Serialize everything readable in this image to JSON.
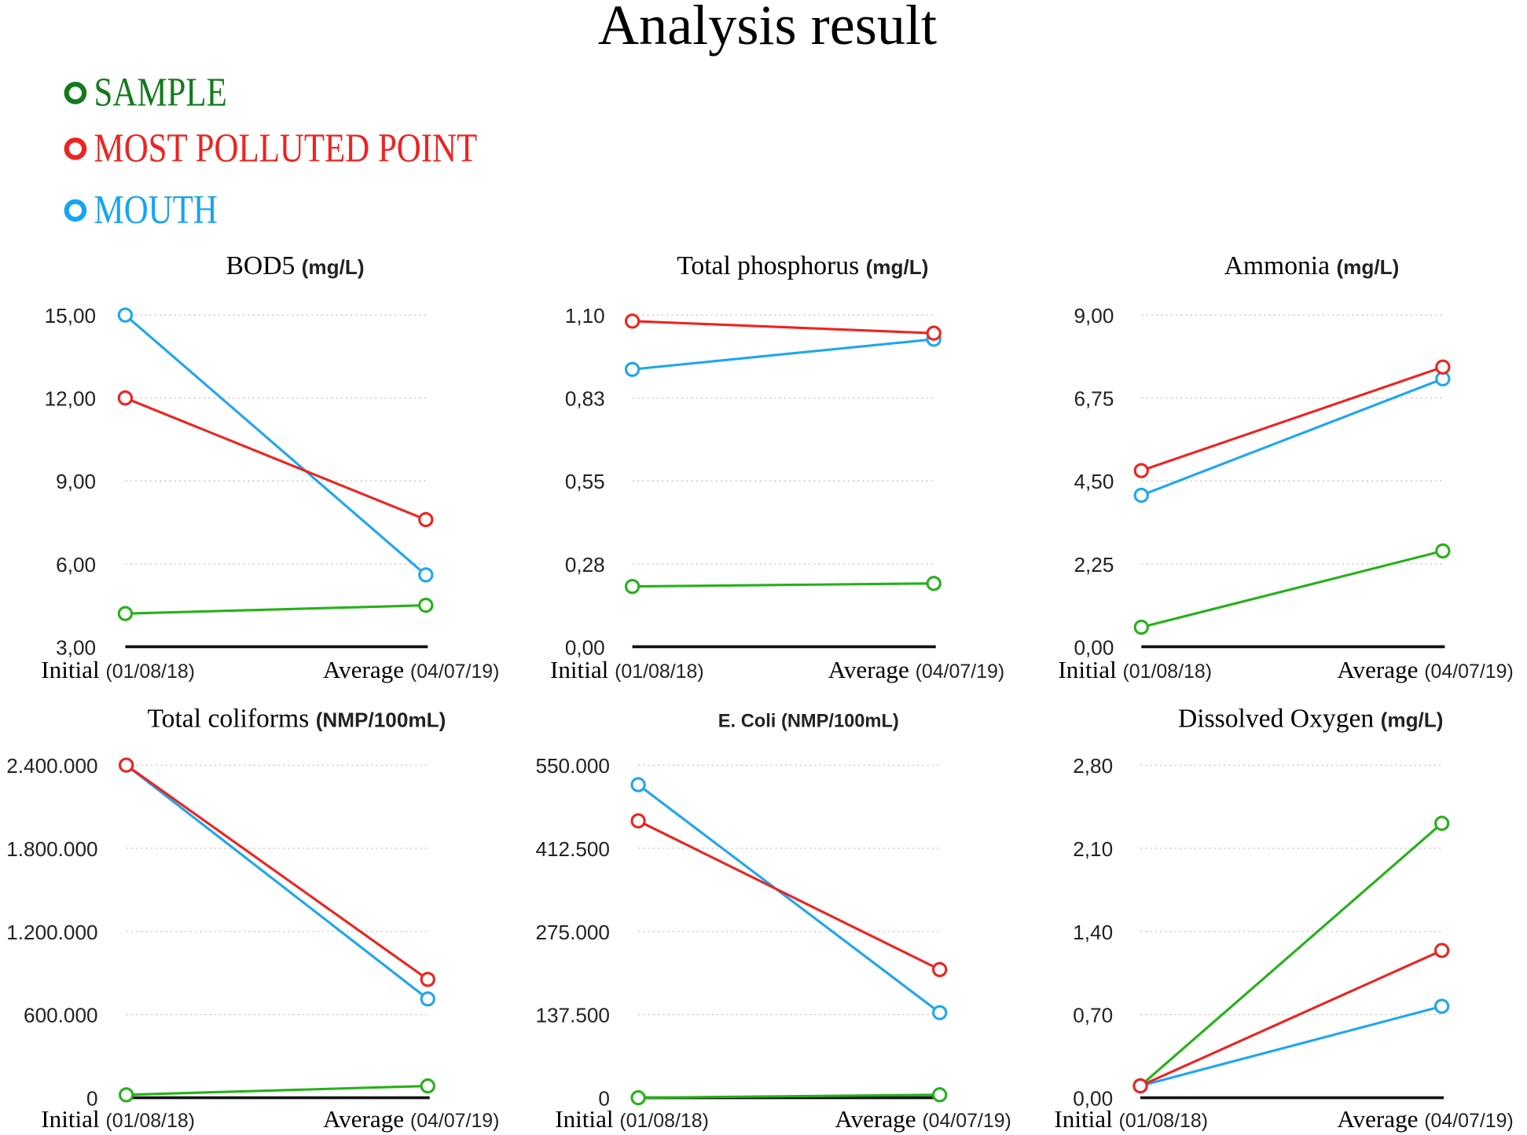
{
  "title": "Analysis result",
  "legend": [
    {
      "label": "SAMPLE",
      "color": "#127a1c",
      "icon": "circle-marker-icon"
    },
    {
      "label": "MOST POLLUTED POINT",
      "color": "#ec2420",
      "icon": "circle-marker-icon"
    },
    {
      "label": "MOUTH",
      "color": "#16a4f2",
      "icon": "circle-marker-icon"
    }
  ],
  "series_colors": {
    "SAMPLE": "#26b11a",
    "MOST POLLUTED POINT": "#ec2420",
    "MOUTH": "#1fa6f0"
  },
  "chart_data": [
    {
      "type": "line",
      "title": "BOD5",
      "unit": "(mg/L)",
      "categories": [
        {
          "main": "Initial",
          "sub": "(01/08/18)"
        },
        {
          "main": "Average",
          "sub": "(04/07/19)"
        }
      ],
      "yticks": [
        "3,00",
        "6,00",
        "9,00",
        "12,00",
        "15,00"
      ],
      "ylim": [
        3,
        15
      ],
      "grid": true,
      "series": [
        {
          "name": "SAMPLE",
          "values": [
            4.2,
            4.5
          ]
        },
        {
          "name": "MOST POLLUTED POINT",
          "values": [
            12.0,
            7.6
          ]
        },
        {
          "name": "MOUTH",
          "values": [
            15.0,
            5.6
          ]
        }
      ]
    },
    {
      "type": "line",
      "title": "Total phosphorus",
      "unit": "(mg/L)",
      "categories": [
        {
          "main": "Initial",
          "sub": "(01/08/18)"
        },
        {
          "main": "Average",
          "sub": "(04/07/19)"
        }
      ],
      "yticks": [
        "0,00",
        "0,28",
        "0,55",
        "0,83",
        "1,10"
      ],
      "ylim": [
        0,
        1.1
      ],
      "grid": true,
      "series": [
        {
          "name": "SAMPLE",
          "values": [
            0.2,
            0.21
          ]
        },
        {
          "name": "MOST POLLUTED POINT",
          "values": [
            1.08,
            1.04
          ]
        },
        {
          "name": "MOUTH",
          "values": [
            0.92,
            1.02
          ]
        }
      ]
    },
    {
      "type": "line",
      "title": "Ammonia",
      "unit": "(mg/L)",
      "categories": [
        {
          "main": "Initial",
          "sub": "(01/08/18)"
        },
        {
          "main": "Average",
          "sub": "(04/07/19)"
        }
      ],
      "yticks": [
        "0,00",
        "2,25",
        "4,50",
        "6,75",
        "9,00"
      ],
      "ylim": [
        0,
        9
      ],
      "grid": true,
      "series": [
        {
          "name": "SAMPLE",
          "values": [
            0.53,
            2.6
          ]
        },
        {
          "name": "MOST POLLUTED POINT",
          "values": [
            4.78,
            7.59
          ]
        },
        {
          "name": "MOUTH",
          "values": [
            4.11,
            7.27
          ]
        }
      ]
    },
    {
      "type": "line",
      "title": "Total coliforms",
      "unit": "(NMP/100mL)",
      "categories": [
        {
          "main": "Initial",
          "sub": "(01/08/18)"
        },
        {
          "main": "Average",
          "sub": "(04/07/19)"
        }
      ],
      "yticks": [
        "0",
        "600.000",
        "1.200.000",
        "1.800.000",
        "2.400.000"
      ],
      "ylim": [
        0,
        2400000
      ],
      "grid": true,
      "series": [
        {
          "name": "SAMPLE",
          "values": [
            21000,
            85000
          ]
        },
        {
          "name": "MOST POLLUTED POINT",
          "values": [
            2400000,
            854000
          ]
        },
        {
          "name": "MOUTH",
          "values": [
            2400000,
            713000
          ]
        }
      ]
    },
    {
      "type": "line",
      "title": "",
      "unit": "E. Coli (NMP/100mL)",
      "categories": [
        {
          "main": "Initial",
          "sub": "(01/08/18)"
        },
        {
          "main": "Average",
          "sub": "(04/07/19)"
        }
      ],
      "yticks": [
        "0",
        "137.500",
        "275.000",
        "412.500",
        "550.000"
      ],
      "ylim": [
        0,
        550000
      ],
      "grid": true,
      "series": [
        {
          "name": "SAMPLE",
          "values": [
            0,
            4900
          ]
        },
        {
          "name": "MOST POLLUTED POINT",
          "values": [
            457800,
            211900
          ]
        },
        {
          "name": "MOUTH",
          "values": [
            517600,
            140700
          ]
        }
      ]
    },
    {
      "type": "line",
      "title": "Dissolved Oxygen",
      "unit": "(mg/L)",
      "categories": [
        {
          "main": "Initial",
          "sub": "(01/08/18)"
        },
        {
          "main": "Average",
          "sub": "(04/07/19)"
        }
      ],
      "yticks": [
        "0,00",
        "0,70",
        "1,40",
        "2,10",
        "2,80"
      ],
      "ylim": [
        0,
        2.8
      ],
      "grid": true,
      "series": [
        {
          "name": "SAMPLE",
          "values": [
            0.1,
            2.31
          ]
        },
        {
          "name": "MOST POLLUTED POINT",
          "values": [
            0.1,
            1.24
          ]
        },
        {
          "name": "MOUTH",
          "values": [
            0.1,
            0.77
          ]
        }
      ]
    }
  ]
}
